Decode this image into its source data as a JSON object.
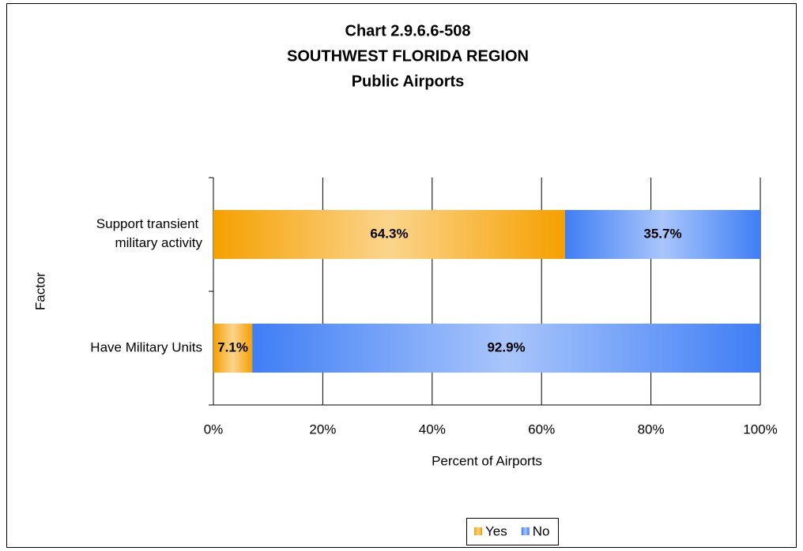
{
  "chart_data": {
    "type": "stacked-barh",
    "title": [
      "Chart 2.9.6.6-508",
      "SOUTHWEST FLORIDA REGION",
      "Public Airports"
    ],
    "x_label": "Percent of Airports",
    "y_label": "Factor",
    "categories": [
      "Support transient military activity",
      "Have Military Units"
    ],
    "series": [
      {
        "name": "Yes",
        "color": "#f5a000",
        "values": [
          64.3,
          7.1
        ],
        "value_labels": [
          "64.3%",
          "7.1%"
        ]
      },
      {
        "name": "No",
        "color": "#3f7ef5",
        "values": [
          35.7,
          92.9
        ],
        "value_labels": [
          "35.7%",
          "92.9%"
        ]
      }
    ],
    "xlim": [
      0,
      100
    ],
    "xticks": [
      {
        "value": 0,
        "label": "0%"
      },
      {
        "value": 20,
        "label": "20%"
      },
      {
        "value": 40,
        "label": "40%"
      },
      {
        "value": 60,
        "label": "60%"
      },
      {
        "value": 80,
        "label": "80%"
      },
      {
        "value": 100,
        "label": "100%"
      }
    ],
    "grid": true,
    "legend": "bottom"
  }
}
